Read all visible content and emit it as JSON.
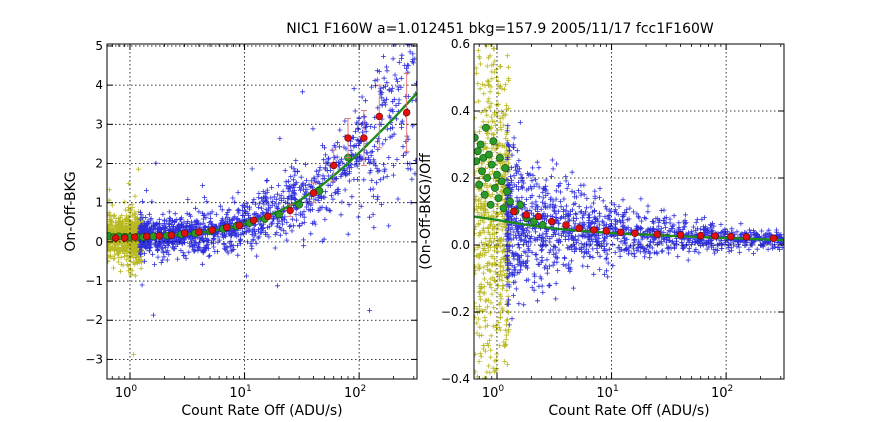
{
  "figure": {
    "title": "NIC1  F160W  a=1.012451  bkg=157.9  2005/11/17   fcc1F160W"
  },
  "colors": {
    "blue_points": "#2f2fdc",
    "yellow_points": "#b8b820",
    "fit_line": "#1e8a1e",
    "green_markers": "#2a9a2a",
    "red_markers": "#e01010",
    "error_bars": "#e07070",
    "grid": "#000000"
  },
  "chart_data": [
    {
      "type": "scatter",
      "panel": "left",
      "xscale": "log",
      "xlim": [
        0.63,
        320
      ],
      "ylim": [
        -3.5,
        5.05
      ],
      "xlabel": "Count Rate Off (ADU/s)",
      "ylabel": "On-Off-BKG",
      "xticks": [
        {
          "value": 1,
          "base": "10",
          "exp": "0"
        },
        {
          "value": 10,
          "base": "10",
          "exp": "1"
        },
        {
          "value": 100,
          "base": "10",
          "exp": "2"
        }
      ],
      "yticks": [
        -3,
        -2,
        -1,
        0,
        1,
        2,
        3,
        4,
        5
      ],
      "grid": true,
      "fit_curve": {
        "x": [
          0.63,
          1,
          2,
          3,
          5,
          8,
          12,
          20,
          30,
          50,
          80,
          120,
          200,
          320
        ],
        "y": [
          0.1,
          0.11,
          0.15,
          0.19,
          0.27,
          0.38,
          0.52,
          0.78,
          1.05,
          1.5,
          2.0,
          2.5,
          3.15,
          3.8
        ]
      },
      "red_binned": {
        "x": [
          0.75,
          0.9,
          1.1,
          1.4,
          1.8,
          2.3,
          3.0,
          4.0,
          5.2,
          7.0,
          9.0,
          12,
          16,
          25,
          40,
          60,
          80,
          110,
          150,
          260
        ],
        "y": [
          0.1,
          0.1,
          0.12,
          0.14,
          0.15,
          0.17,
          0.22,
          0.25,
          0.3,
          0.37,
          0.42,
          0.55,
          0.65,
          0.8,
          1.25,
          1.95,
          2.65,
          2.65,
          3.2,
          3.3
        ],
        "err": [
          0,
          0,
          0,
          0,
          0,
          0,
          0,
          0,
          0,
          0,
          0,
          0,
          0,
          0.15,
          0.25,
          0.4,
          0.5,
          0.7,
          0.8,
          1.0
        ]
      },
      "green_binned": {
        "x": [
          0.65,
          0.72,
          0.8,
          0.9,
          1.0,
          1.15,
          1.3,
          1.6,
          2.1,
          2.8,
          3.7,
          5.0,
          6.5,
          8.5,
          11,
          15,
          20,
          30,
          45,
          80
        ],
        "y": [
          0.15,
          0.12,
          0.14,
          0.13,
          0.12,
          0.13,
          0.12,
          0.14,
          0.16,
          0.19,
          0.22,
          0.27,
          0.33,
          0.4,
          0.48,
          0.58,
          0.7,
          0.95,
          1.3,
          2.15
        ]
      }
    },
    {
      "type": "scatter",
      "panel": "right",
      "xscale": "log",
      "xlim": [
        0.63,
        320
      ],
      "ylim": [
        -0.4,
        0.6
      ],
      "xlabel": "Count Rate Off (ADU/s)",
      "ylabel": "(On-Off-BKG)/Off",
      "xticks": [
        {
          "value": 1,
          "base": "10",
          "exp": "0"
        },
        {
          "value": 10,
          "base": "10",
          "exp": "1"
        },
        {
          "value": 100,
          "base": "10",
          "exp": "2"
        }
      ],
      "yticks": [
        -0.4,
        -0.2,
        0.0,
        0.2,
        0.4,
        0.6
      ],
      "ytick_labels": [
        "−0.4",
        "−0.2",
        "0.0",
        "0.2",
        "0.4",
        "0.6"
      ],
      "grid": true,
      "fit_curve": {
        "x": [
          0.63,
          0.8,
          1.0,
          1.3,
          2,
          3,
          5,
          8,
          12,
          20,
          30,
          50,
          80,
          120,
          200,
          320
        ],
        "y": [
          0.085,
          0.08,
          0.075,
          0.068,
          0.058,
          0.05,
          0.043,
          0.038,
          0.034,
          0.031,
          0.028,
          0.025,
          0.022,
          0.02,
          0.017,
          0.015
        ]
      },
      "red_binned": {
        "x": [
          1.4,
          1.8,
          2.3,
          3.0,
          4.0,
          5.2,
          7.0,
          9.0,
          12,
          16,
          25,
          40,
          60,
          80,
          110,
          150,
          260
        ],
        "y": [
          0.1,
          0.09,
          0.085,
          0.07,
          0.06,
          0.05,
          0.045,
          0.042,
          0.038,
          0.035,
          0.032,
          0.03,
          0.028,
          0.027,
          0.025,
          0.024,
          0.02
        ],
        "err": [
          0,
          0,
          0,
          0,
          0,
          0,
          0,
          0,
          0,
          0,
          0,
          0,
          0,
          0,
          0,
          0,
          0
        ]
      },
      "green_binned": {
        "x": [
          0.64,
          0.66,
          0.68,
          0.7,
          0.72,
          0.74,
          0.76,
          0.78,
          0.8,
          0.82,
          0.85,
          0.88,
          0.9,
          0.93,
          0.96,
          1.0,
          1.03,
          1.06,
          1.1,
          1.14,
          1.18,
          1.22,
          1.3,
          1.45,
          1.6,
          1.8,
          2.1,
          2.5
        ],
        "y": [
          0.32,
          0.25,
          0.28,
          0.18,
          0.3,
          0.22,
          0.26,
          0.15,
          0.35,
          0.2,
          0.27,
          0.12,
          0.24,
          0.31,
          0.17,
          0.21,
          0.14,
          0.26,
          0.19,
          0.11,
          0.23,
          0.16,
          0.13,
          0.1,
          0.12,
          0.08,
          0.07,
          0.06
        ]
      }
    }
  ]
}
